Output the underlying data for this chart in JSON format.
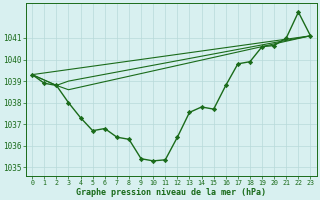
{
  "line_main": {
    "x": [
      0,
      1,
      2,
      3,
      4,
      5,
      6,
      7,
      8,
      9,
      10,
      11,
      12,
      13,
      14,
      15,
      16,
      17,
      18,
      19,
      20,
      21,
      22,
      23
    ],
    "y": [
      1039.3,
      1038.9,
      1038.8,
      1038.0,
      1037.3,
      1036.7,
      1036.8,
      1036.4,
      1036.3,
      1035.4,
      1035.3,
      1035.35,
      1036.4,
      1037.55,
      1037.8,
      1037.7,
      1038.8,
      1039.8,
      1039.9,
      1040.6,
      1040.65,
      1041.0,
      1042.2,
      1041.1
    ],
    "color": "#1a6b1a",
    "marker": "D",
    "markersize": 2.2,
    "linewidth": 1.0
  },
  "line_straight1": {
    "x": [
      0,
      23
    ],
    "y": [
      1039.3,
      1041.1
    ],
    "color": "#1a6b1a",
    "linewidth": 0.8
  },
  "line_straight2": {
    "x": [
      0,
      2,
      3,
      23
    ],
    "y": [
      1039.3,
      1038.8,
      1039.0,
      1041.1
    ],
    "color": "#1a6b1a",
    "linewidth": 0.8
  },
  "line_straight3": {
    "x": [
      0,
      2,
      3,
      23
    ],
    "y": [
      1039.3,
      1038.8,
      1038.6,
      1041.1
    ],
    "color": "#1a6b1a",
    "linewidth": 0.8
  },
  "background_color": "#d8f0f0",
  "grid_color": "#b8dada",
  "line_color": "#1a6b1a",
  "xlabel": "Graphe pression niveau de la mer (hPa)",
  "xlim": [
    -0.5,
    23.5
  ],
  "ylim": [
    1034.6,
    1042.6
  ],
  "yticks": [
    1035,
    1036,
    1037,
    1038,
    1039,
    1040,
    1041
  ],
  "xticks": [
    0,
    1,
    2,
    3,
    4,
    5,
    6,
    7,
    8,
    9,
    10,
    11,
    12,
    13,
    14,
    15,
    16,
    17,
    18,
    19,
    20,
    21,
    22,
    23
  ]
}
